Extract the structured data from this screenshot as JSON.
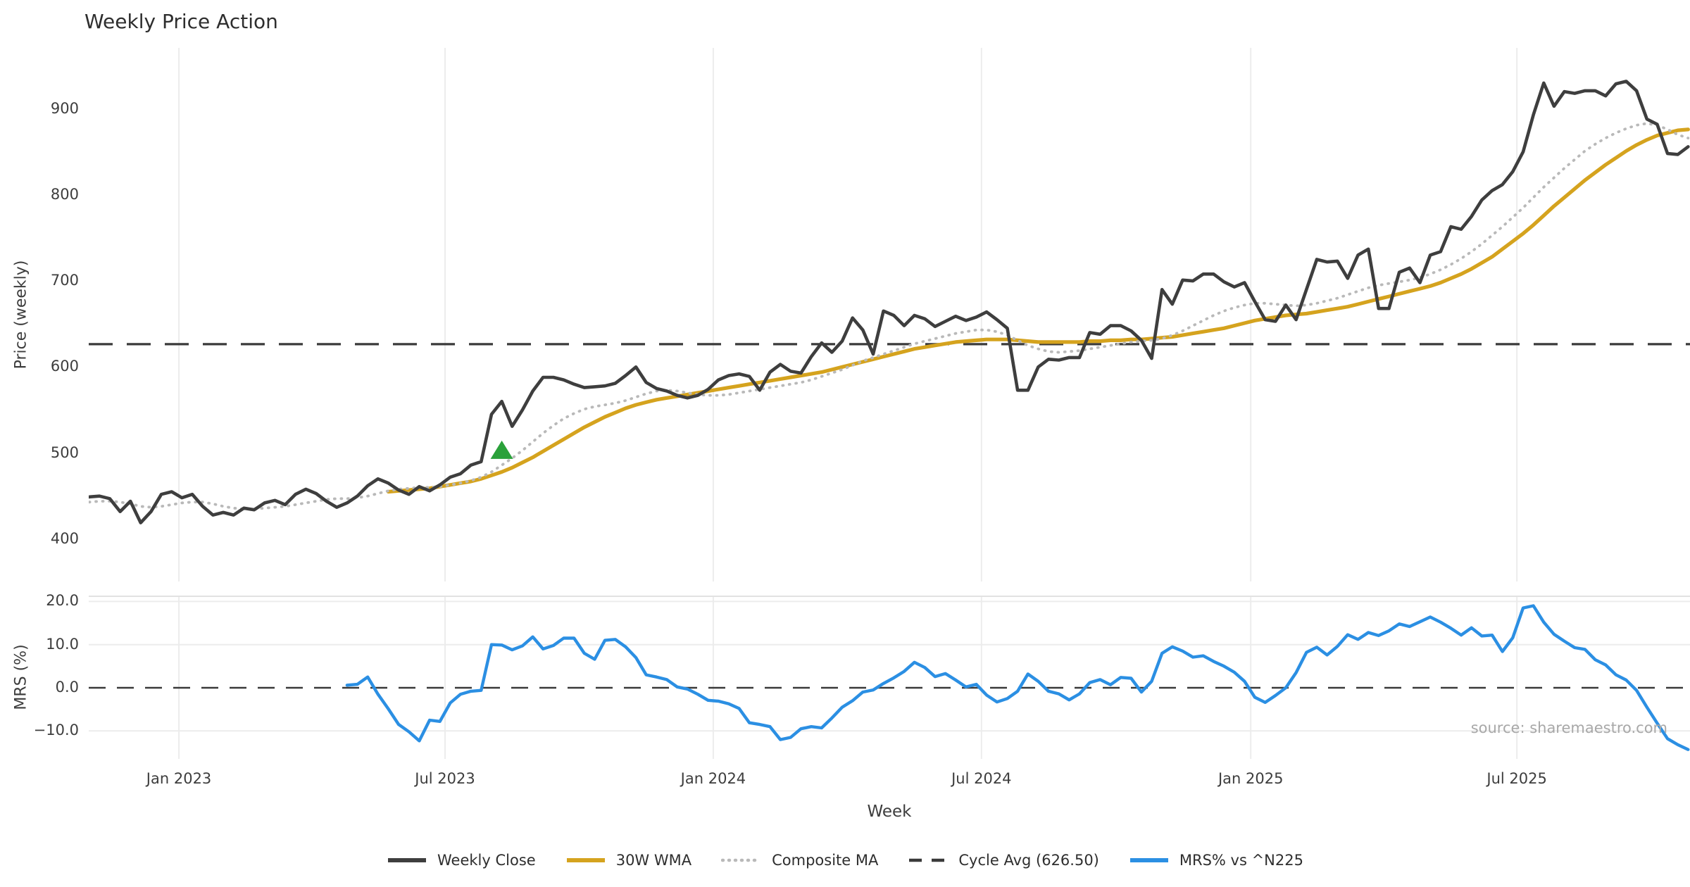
{
  "title": "Weekly Price Action",
  "xlabel": "Week",
  "source": "source: sharemaestro.com",
  "price_panel": {
    "ylabel": "Price (weekly)",
    "yticks": [
      400,
      500,
      600,
      700,
      800,
      900
    ]
  },
  "mrs_panel": {
    "ylabel": "MRS (%)",
    "yticks": [
      {
        "label": "20.0",
        "v": 20
      },
      {
        "label": "10.0",
        "v": 10
      },
      {
        "label": "0.0",
        "v": 0
      },
      {
        "label": "−10.0",
        "v": -10
      }
    ]
  },
  "colors": {
    "close": "#3e3e3e",
    "wma": "#d5a31e",
    "composite": "#b9b9b9",
    "cycle": "#3a3a3a",
    "mrs": "#2b8fe3",
    "marker": "#2aa13a",
    "grid": "#ececec",
    "spine": "#e2e2e2",
    "zero_line": "#3a3a3a"
  },
  "legend": [
    {
      "label": "Weekly Close",
      "style": "solid",
      "color": "#3e3e3e"
    },
    {
      "label": "30W WMA",
      "style": "solid",
      "color": "#d5a31e"
    },
    {
      "label": "Composite MA",
      "style": "dotted",
      "color": "#b9b9b9"
    },
    {
      "label": "Cycle Avg (626.50)",
      "style": "dashed",
      "color": "#3a3a3a"
    },
    {
      "label": "MRS% vs ^N225",
      "style": "solid",
      "color": "#2b8fe3"
    }
  ],
  "chart_data": {
    "type": "line",
    "x_unit": "week_index",
    "n_weeks": 156,
    "x_start": "Nov 2022",
    "xticks": [
      {
        "label": "Jan 2023",
        "week": 8.7
      },
      {
        "label": "Jul 2023",
        "week": 34.5
      },
      {
        "label": "Jan 2024",
        "week": 60.5
      },
      {
        "label": "Jul 2024",
        "week": 86.5
      },
      {
        "label": "Jan 2025",
        "week": 112.6
      },
      {
        "label": "Jul 2025",
        "week": 138.4
      }
    ],
    "price_ylim": [
      352,
      972
    ],
    "mrs_ylim": [
      -16.5,
      21.4
    ],
    "cycle_avg": 626.5,
    "buy_marker": {
      "week": 40,
      "price": 503,
      "shape": "triangle-up",
      "color": "#2aa13a"
    },
    "series": [
      {
        "name": "Weekly Close",
        "values": [
          449,
          450,
          447,
          432,
          444,
          419,
          432,
          452,
          455,
          448,
          452,
          438,
          428,
          431,
          428,
          436,
          434,
          442,
          445,
          440,
          452,
          458,
          453,
          444,
          437,
          442,
          450,
          462,
          470,
          465,
          457,
          452,
          461,
          456,
          463,
          472,
          476,
          486,
          490,
          545,
          560,
          531,
          550,
          572,
          588,
          588,
          585,
          580,
          576,
          577,
          578,
          581,
          590,
          600,
          582,
          575,
          572,
          567,
          564,
          567,
          574,
          585,
          590,
          592,
          589,
          573,
          594,
          603,
          595,
          593,
          612,
          628,
          617,
          630,
          657,
          643,
          615,
          665,
          660,
          648,
          660,
          656,
          647,
          653,
          659,
          654,
          658,
          664,
          655,
          645,
          573,
          573,
          600,
          609,
          608,
          611,
          611,
          640,
          638,
          648,
          648,
          642,
          631,
          610,
          690,
          673,
          701,
          700,
          708,
          708,
          699,
          693,
          698,
          676,
          655,
          653,
          672,
          655,
          690,
          725,
          722,
          723,
          703,
          730,
          737,
          668,
          668,
          710,
          715,
          698,
          730,
          734,
          763,
          760,
          775,
          794,
          805,
          812,
          827,
          850,
          893,
          930,
          903,
          920,
          918,
          921,
          921,
          915,
          929,
          932,
          921,
          888,
          882,
          848,
          847,
          856
        ]
      },
      {
        "name": "30W WMA",
        "values": [
          null,
          null,
          null,
          null,
          null,
          null,
          null,
          null,
          null,
          null,
          null,
          null,
          null,
          null,
          null,
          null,
          null,
          null,
          null,
          null,
          null,
          null,
          null,
          null,
          null,
          null,
          null,
          null,
          null,
          455,
          456,
          457,
          458,
          459,
          461,
          463,
          465,
          467,
          470,
          474,
          478,
          483,
          489,
          495,
          502,
          509,
          516,
          523,
          530,
          536,
          542,
          547,
          552,
          556,
          559,
          562,
          564,
          566,
          568,
          570,
          572,
          574,
          576,
          578,
          580,
          582,
          584,
          586,
          588,
          590,
          592,
          594,
          597,
          600,
          603,
          606,
          609,
          612,
          615,
          618,
          621,
          623,
          625,
          627,
          629,
          630,
          631,
          632,
          632,
          632,
          631,
          630,
          629,
          629,
          629,
          629,
          629,
          630,
          630,
          631,
          631,
          632,
          632,
          633,
          634,
          635,
          637,
          639,
          641,
          643,
          645,
          648,
          651,
          654,
          656,
          658,
          660,
          661,
          662,
          664,
          666,
          668,
          670,
          673,
          676,
          679,
          682,
          685,
          688,
          691,
          694,
          698,
          703,
          708,
          714,
          721,
          728,
          737,
          746,
          755,
          765,
          776,
          787,
          797,
          807,
          817,
          826,
          835,
          843,
          851,
          858,
          864,
          869,
          872,
          875,
          876
        ]
      },
      {
        "name": "Composite MA",
        "values": [
          443,
          444,
          444,
          443,
          441,
          438,
          437,
          438,
          440,
          442,
          443,
          443,
          441,
          438,
          436,
          435,
          435,
          436,
          437,
          438,
          440,
          442,
          444,
          446,
          447,
          447,
          448,
          450,
          453,
          456,
          458,
          459,
          460,
          460,
          461,
          463,
          465,
          468,
          472,
          478,
          486,
          494,
          503,
          513,
          523,
          532,
          540,
          546,
          551,
          554,
          556,
          558,
          561,
          565,
          569,
          572,
          573,
          572,
          570,
          568,
          567,
          567,
          568,
          570,
          572,
          574,
          576,
          578,
          580,
          582,
          585,
          589,
          593,
          597,
          602,
          607,
          611,
          615,
          619,
          623,
          627,
          630,
          633,
          636,
          639,
          641,
          643,
          643,
          641,
          637,
          631,
          625,
          621,
          618,
          617,
          618,
          619,
          621,
          623,
          625,
          627,
          629,
          630,
          631,
          633,
          637,
          642,
          648,
          654,
          660,
          665,
          669,
          672,
          674,
          674,
          673,
          672,
          671,
          672,
          674,
          677,
          680,
          684,
          688,
          692,
          695,
          697,
          699,
          701,
          704,
          708,
          713,
          719,
          726,
          734,
          743,
          753,
          763,
          774,
          785,
          797,
          809,
          820,
          831,
          841,
          851,
          859,
          866,
          872,
          877,
          881,
          883,
          881,
          876,
          870,
          866
        ]
      },
      {
        "name": "MRS% vs ^N225",
        "values": [
          null,
          null,
          null,
          null,
          null,
          null,
          null,
          null,
          null,
          null,
          null,
          null,
          null,
          null,
          null,
          null,
          null,
          null,
          null,
          null,
          null,
          null,
          null,
          null,
          null,
          0.6,
          0.8,
          2.5,
          -1.5,
          -4.9,
          -8.5,
          -10.2,
          -12.3,
          -7.5,
          -7.8,
          -3.5,
          -1.5,
          -0.8,
          -0.6,
          10.0,
          9.9,
          8.8,
          9.7,
          11.8,
          9.0,
          9.8,
          11.5,
          11.5,
          8.0,
          6.6,
          11.0,
          11.2,
          9.5,
          7.0,
          3.0,
          2.5,
          1.9,
          0.2,
          -0.3,
          -1.5,
          -2.9,
          -3.1,
          -3.7,
          -4.8,
          -8.1,
          -8.5,
          -9.0,
          -12.0,
          -11.5,
          -9.5,
          -9.0,
          -9.3,
          -7.0,
          -4.5,
          -3.0,
          -1.0,
          -0.5,
          1.0,
          2.3,
          3.8,
          5.9,
          4.7,
          2.6,
          3.3,
          1.8,
          0.2,
          0.8,
          -1.7,
          -3.3,
          -2.5,
          -0.8,
          3.2,
          1.5,
          -0.8,
          -1.4,
          -2.8,
          -1.4,
          1.2,
          1.9,
          0.7,
          2.4,
          2.2,
          -1.0,
          1.5,
          8.0,
          9.5,
          8.5,
          7.1,
          7.4,
          6.1,
          5.0,
          3.6,
          1.5,
          -2.2,
          -3.4,
          -1.8,
          0.0,
          3.5,
          8.2,
          9.4,
          7.6,
          9.6,
          12.3,
          11.2,
          12.8,
          12.1,
          13.2,
          14.8,
          14.2,
          15.3,
          16.4,
          15.2,
          13.8,
          12.2,
          13.9,
          12.0,
          12.2,
          8.4,
          11.6,
          18.5,
          19.0,
          15.2,
          12.4,
          10.8,
          9.3,
          8.9,
          6.5,
          5.3,
          3.0,
          1.8,
          -0.6,
          -4.5,
          -8.2,
          -11.8,
          -13.2,
          -14.3
        ]
      }
    ]
  }
}
